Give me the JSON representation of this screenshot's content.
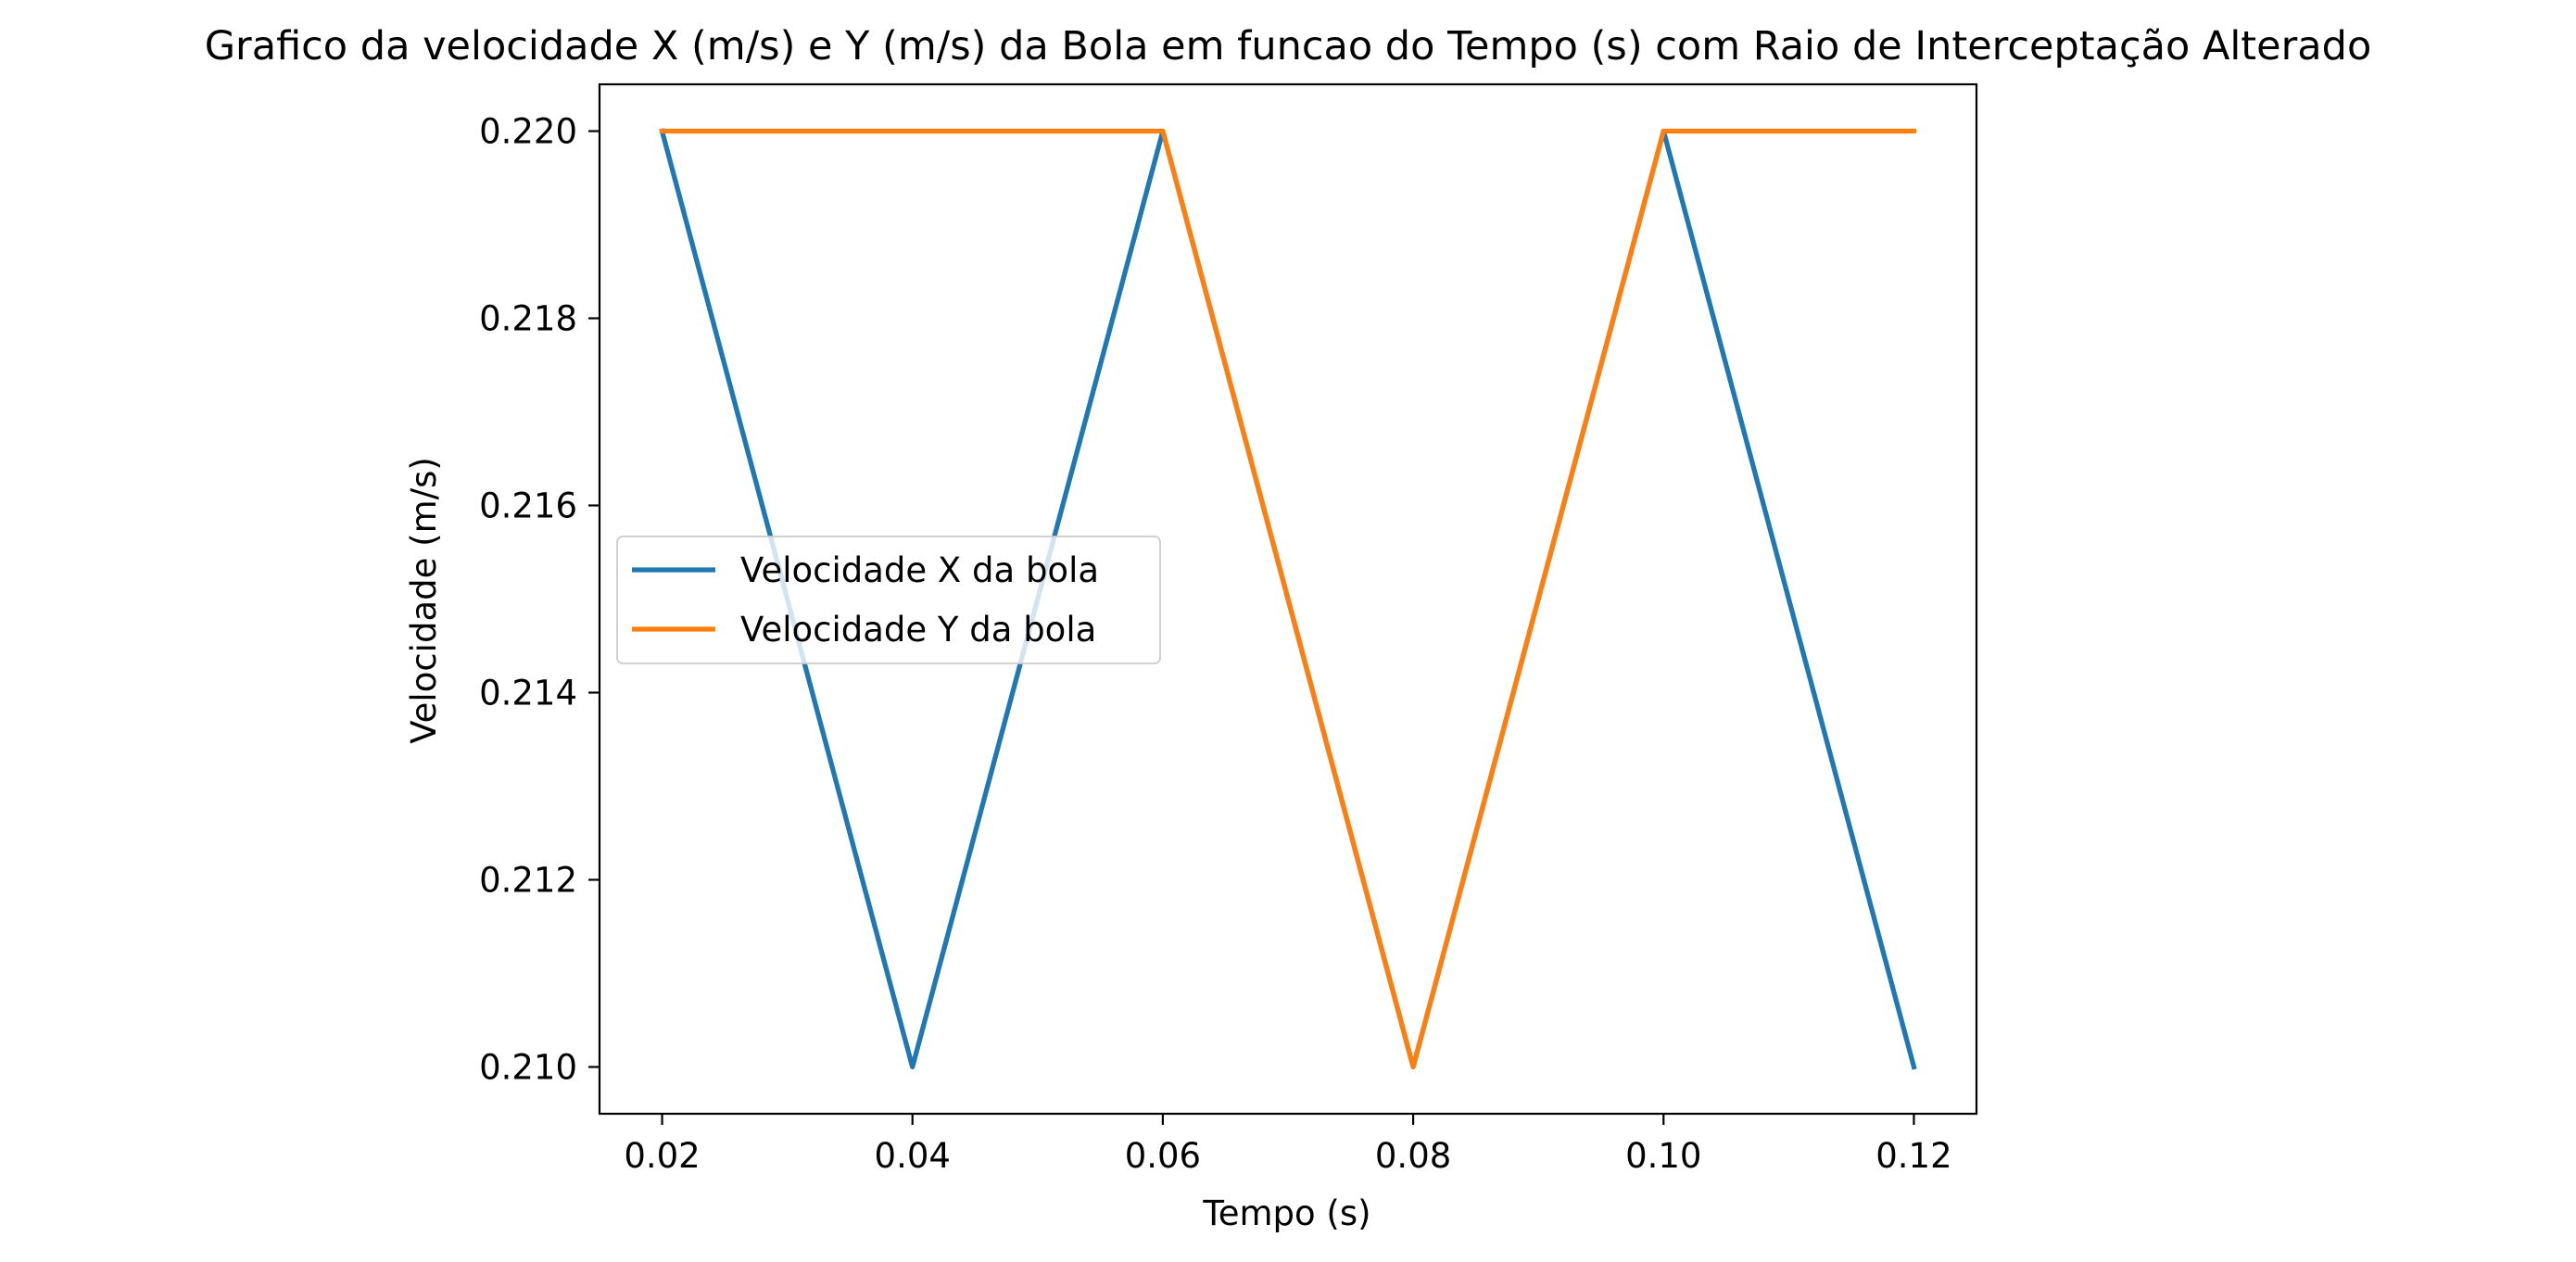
{
  "chart_data": {
    "type": "line",
    "title": "Grafico da velocidade X (m/s) e Y (m/s) da Bola em funcao do Tempo (s) com Raio de Interceptação Alterado",
    "xlabel": "Tempo (s)",
    "ylabel": "Velocidade (m/s)",
    "x": [
      0.02,
      0.04,
      0.06,
      0.08,
      0.1,
      0.12
    ],
    "xlim": [
      0.015,
      0.125
    ],
    "ylim": [
      0.2095,
      0.2205
    ],
    "xticks": [
      0.02,
      0.04,
      0.06,
      0.08,
      0.1,
      0.12
    ],
    "xtick_labels": [
      "0.02",
      "0.04",
      "0.06",
      "0.08",
      "0.10",
      "0.12"
    ],
    "yticks": [
      0.21,
      0.212,
      0.214,
      0.216,
      0.218,
      0.22
    ],
    "ytick_labels": [
      "0.210",
      "0.212",
      "0.214",
      "0.216",
      "0.218",
      "0.220"
    ],
    "grid": false,
    "legend_position": "center-left",
    "series": [
      {
        "name": "Velocidade X da bola",
        "color": "#1f77b4",
        "values": [
          0.22,
          0.21,
          0.22,
          0.21,
          0.22,
          0.21
        ]
      },
      {
        "name": "Velocidade Y da bola",
        "color": "#ff7f0e",
        "values": [
          0.22,
          0.22,
          0.22,
          0.21,
          0.22,
          0.22
        ]
      }
    ]
  }
}
